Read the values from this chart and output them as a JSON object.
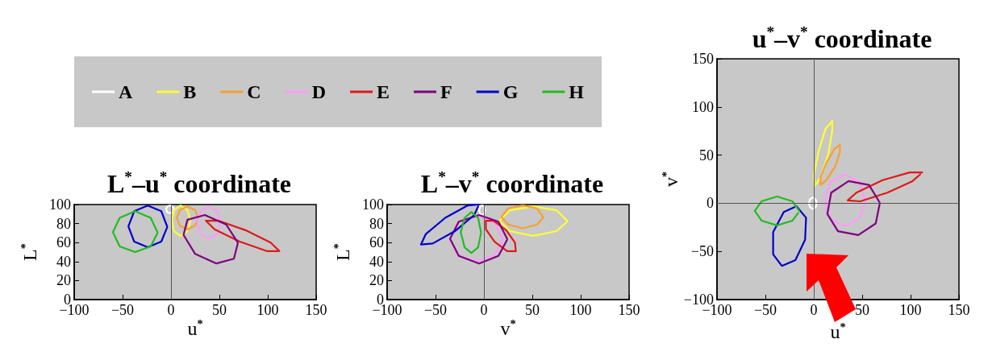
{
  "chart_data": [
    {
      "type": "line",
      "title": "L$^{*}$–u$^{*}$ coordinate",
      "xlabel": "u$^{*}$",
      "ylabel": "L$^{*}$",
      "xlim": [
        -100,
        150
      ],
      "ylim": [
        0,
        100
      ],
      "xticks": [
        -100,
        -50,
        0,
        50,
        100,
        150
      ],
      "yticks": [
        0,
        20,
        40,
        60,
        80,
        100
      ],
      "legend": "top",
      "marker": "none",
      "line_style": "solid",
      "ref_lines": [
        {
          "axis": "x",
          "value": 0
        }
      ],
      "series": [
        {
          "name": "A",
          "color": "#ffffff",
          "x": [
            3,
            2,
            -1,
            -4,
            -5,
            -4,
            -1,
            2,
            3
          ],
          "values": [
            95,
            98,
            99,
            98,
            95,
            92,
            91,
            92,
            94
          ]
        },
        {
          "name": "B",
          "color": "#ffff33",
          "x": [
            20,
            17,
            10,
            3,
            1,
            3,
            10,
            17,
            20
          ],
          "values": [
            83,
            94,
            99,
            94,
            83,
            72,
            67,
            72,
            82
          ]
        },
        {
          "name": "C",
          "color": "#f7a030",
          "x": [
            28,
            25,
            17,
            9,
            6,
            9,
            17,
            25,
            28
          ],
          "values": [
            86,
            94,
            98,
            94,
            86,
            78,
            74,
            78,
            85
          ]
        },
        {
          "name": "D",
          "color": "#ff99ff",
          "x": [
            51,
            48,
            39,
            31,
            27,
            31,
            39,
            48,
            51
          ],
          "values": [
            81,
            93,
            98,
            93,
            81,
            69,
            64,
            69,
            80
          ]
        },
        {
          "name": "E",
          "color": "#e01818",
          "x": [
            112,
            103,
            77,
            49,
            36,
            45,
            71,
            99,
            111
          ],
          "values": [
            51,
            60,
            73,
            83,
            83,
            74,
            61,
            51,
            51
          ]
        },
        {
          "name": "F",
          "color": "#800080",
          "x": [
            69,
            57,
            35,
            17,
            13,
            25,
            47,
            65,
            69
          ],
          "values": [
            60,
            79,
            89,
            84,
            68,
            48,
            38,
            43,
            59
          ]
        },
        {
          "name": "G",
          "color": "#0000cc",
          "x": [
            -4,
            -10,
            -24,
            -38,
            -44,
            -38,
            -24,
            -10,
            -4
          ],
          "values": [
            77,
            93,
            99,
            93,
            77,
            61,
            55,
            61,
            76
          ]
        },
        {
          "name": "H",
          "color": "#22bb22",
          "x": [
            -14,
            -21,
            -37,
            -53,
            -60,
            -53,
            -37,
            -21,
            -14
          ],
          "values": [
            71,
            86,
            93,
            86,
            71,
            56,
            50,
            56,
            70
          ]
        }
      ]
    },
    {
      "type": "line",
      "title": "L$^{*}$–v$^{*}$ coordinate",
      "xlabel": "v$^{*}$",
      "ylabel": "L$^{*}$",
      "xlim": [
        -100,
        150
      ],
      "ylim": [
        0,
        100
      ],
      "xticks": [
        -100,
        -50,
        0,
        50,
        100,
        150
      ],
      "yticks": [
        0,
        20,
        40,
        60,
        80,
        100
      ],
      "marker": "none",
      "line_style": "solid",
      "ref_lines": [
        {
          "axis": "x",
          "value": 0
        }
      ],
      "series": [
        {
          "color": "#ffffff",
          "x": [
            1,
            0,
            -2,
            -4,
            -5,
            -4,
            -2,
            0,
            1
          ],
          "values": [
            94,
            98,
            99,
            98,
            94,
            90,
            89,
            90,
            93
          ]
        },
        {
          "color": "#ffff33",
          "x": [
            86,
            75,
            51,
            27,
            16,
            27,
            51,
            75,
            86
          ],
          "values": [
            83,
            94,
            98,
            94,
            83,
            72,
            67,
            72,
            82
          ]
        },
        {
          "color": "#f7a030",
          "x": [
            61,
            55,
            40,
            25,
            18,
            25,
            40,
            55,
            61
          ],
          "values": [
            87,
            96,
            99,
            96,
            87,
            79,
            75,
            79,
            86
          ]
        },
        {
          "color": "#ff99ff",
          "x": [
            19,
            11,
            -8,
            -27,
            -35,
            -27,
            -8,
            11,
            19
          ],
          "values": [
            64,
            81,
            88,
            81,
            64,
            47,
            40,
            47,
            63
          ]
        },
        {
          "color": "#e01818",
          "x": [
            33,
            32,
            23,
            10,
            2,
            2,
            11,
            24,
            32
          ],
          "values": [
            51,
            60,
            73,
            83,
            83,
            74,
            61,
            51,
            51
          ]
        },
        {
          "color": "#800080",
          "x": [
            24,
            15,
            -5,
            -26,
            -35,
            -26,
            -5,
            15,
            24
          ],
          "values": [
            64,
            82,
            89,
            82,
            64,
            46,
            38,
            46,
            63
          ]
        },
        {
          "color": "#0000cc",
          "x": [
            -5,
            -17,
            -40,
            -60,
            -65,
            -53,
            -30,
            -10,
            -6
          ],
          "values": [
            100,
            99,
            86,
            69,
            58,
            59,
            72,
            89,
            98
          ]
        },
        {
          "color": "#22bb22",
          "x": [
            -3,
            -6,
            -13,
            -20,
            -24,
            -20,
            -13,
            -6,
            -3
          ],
          "values": [
            71,
            86,
            92,
            86,
            71,
            55,
            49,
            55,
            70
          ]
        }
      ]
    },
    {
      "type": "line",
      "title": "u$^{*}$–v$^{*}$ coordinate",
      "xlabel": "u$^{*}$",
      "ylabel": "v$^{*}$",
      "xlim": [
        -100,
        150
      ],
      "ylim": [
        -100,
        150
      ],
      "xticks": [
        -100,
        -50,
        0,
        50,
        100,
        150
      ],
      "yticks": [
        -100,
        -50,
        0,
        50,
        100,
        150
      ],
      "marker": "none",
      "line_style": "solid",
      "ref_lines": [
        {
          "axis": "x",
          "value": 0
        },
        {
          "axis": "y",
          "value": 0
        }
      ],
      "series": [
        {
          "color": "#ffffff",
          "x": [
            3,
            2,
            -1,
            -4,
            -5,
            -4,
            -1,
            2,
            3
          ],
          "values": [
            0,
            4,
            6,
            4,
            0,
            -4,
            -6,
            -4,
            -1
          ]
        },
        {
          "color": "#ffff33",
          "x": [
            19,
            19,
            15,
            7,
            1,
            0,
            5,
            12,
            18
          ],
          "values": [
            86,
            75,
            51,
            27,
            18,
            29,
            54,
            77,
            84
          ]
        },
        {
          "color": "#f7a030",
          "x": [
            27,
            27,
            22,
            13,
            7,
            7,
            13,
            21,
            26
          ],
          "values": [
            61,
            53,
            38,
            24,
            19,
            27,
            42,
            56,
            60
          ]
        },
        {
          "color": "#ff99ff",
          "x": [
            53,
            47,
            32,
            17,
            11,
            17,
            32,
            47,
            53
          ],
          "values": [
            3,
            22,
            30,
            22,
            3,
            -16,
            -24,
            -16,
            1
          ]
        },
        {
          "color": "#e01818",
          "x": [
            112,
            99,
            71,
            44,
            35,
            48,
            76,
            102,
            110
          ],
          "values": [
            32,
            32,
            24,
            11,
            3,
            2,
            11,
            23,
            30
          ]
        },
        {
          "color": "#800080",
          "x": [
            68,
            57,
            36,
            18,
            14,
            25,
            46,
            64,
            68
          ],
          "values": [
            1,
            19,
            23,
            11,
            -11,
            -29,
            -33,
            -21,
            -1
          ]
        },
        {
          "color": "#0000cc",
          "x": [
            -18,
            -8,
            -9,
            -19,
            -33,
            -42,
            -42,
            -31,
            -20
          ],
          "values": [
            -3,
            -15,
            -38,
            -59,
            -65,
            -53,
            -30,
            -9,
            -4
          ]
        },
        {
          "color": "#22bb22",
          "x": [
            -15,
            -22,
            -38,
            -54,
            -61,
            -54,
            -38,
            -22,
            -16
          ],
          "values": [
            -8,
            2,
            7,
            2,
            -8,
            -18,
            -23,
            -18,
            -10
          ]
        }
      ]
    }
  ]
}
